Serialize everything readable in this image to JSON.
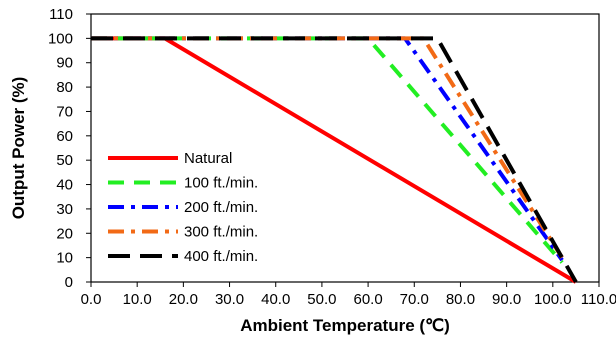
{
  "chart_data": {
    "type": "line",
    "title": "",
    "xlabel": "Ambient Temperature (℃)",
    "ylabel": "Output Power  (%)",
    "xlim": [
      0,
      110
    ],
    "ylim": [
      0,
      110
    ],
    "x_ticks": [
      "0.0",
      "10.0",
      "20.0",
      "30.0",
      "40.0",
      "50.0",
      "60.0",
      "70.0",
      "80.0",
      "90.0",
      "100.0",
      "110.0"
    ],
    "y_ticks": [
      "0",
      "10",
      "20",
      "30",
      "40",
      "50",
      "60",
      "70",
      "80",
      "90",
      "100",
      "110"
    ],
    "grid": false,
    "legend_position": "bottom-left",
    "series": [
      {
        "name": "Natural",
        "color": "#ff0000",
        "dash": "solid",
        "points": [
          [
            0,
            100
          ],
          [
            16,
            100
          ],
          [
            105,
            0
          ]
        ]
      },
      {
        "name": "100 ft./min.",
        "color": "#22ee22",
        "dash": "dash",
        "points": [
          [
            0,
            100
          ],
          [
            60,
            100
          ],
          [
            102,
            8
          ]
        ]
      },
      {
        "name": "200 ft./min.",
        "color": "#0000ff",
        "dash": "dashdot",
        "points": [
          [
            0,
            100
          ],
          [
            68,
            100
          ],
          [
            102,
            9
          ]
        ]
      },
      {
        "name": "300 ft./min.",
        "color": "#f26a16",
        "dash": "dashdot",
        "points": [
          [
            0,
            100
          ],
          [
            72,
            100
          ],
          [
            102,
            10
          ]
        ]
      },
      {
        "name": "400 ft./min.",
        "color": "#000000",
        "dash": "longdash",
        "points": [
          [
            0,
            100
          ],
          [
            75,
            100
          ],
          [
            105,
            0
          ]
        ]
      }
    ]
  }
}
